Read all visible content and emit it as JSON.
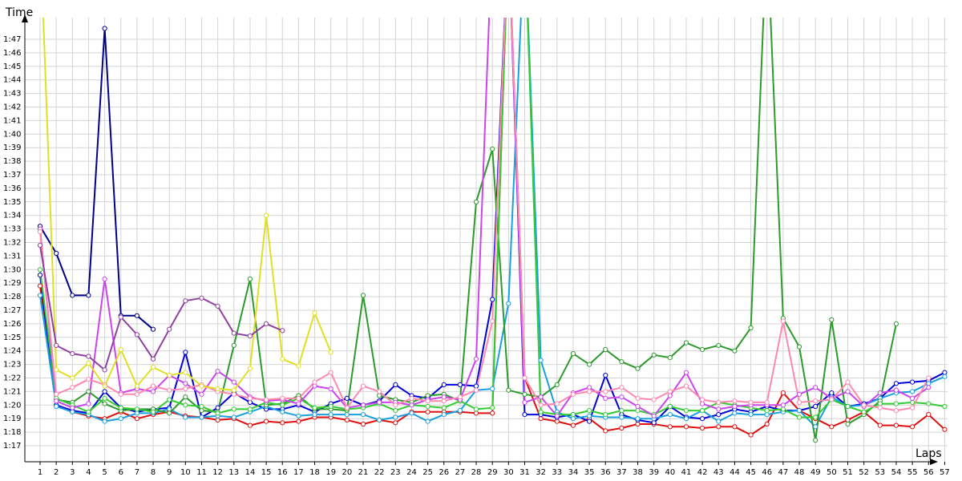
{
  "chart_data": {
    "type": "line",
    "xlabel": "Laps",
    "ylabel": "Time",
    "grid": true,
    "legend": "none",
    "xlim": [
      0.5,
      57.5
    ],
    "ylim": [
      75.8,
      109
    ],
    "x_ticks": [
      1,
      2,
      3,
      4,
      5,
      6,
      7,
      8,
      9,
      10,
      11,
      12,
      13,
      14,
      15,
      16,
      17,
      18,
      19,
      20,
      21,
      22,
      23,
      24,
      25,
      26,
      27,
      28,
      29,
      30,
      31,
      32,
      33,
      34,
      35,
      36,
      37,
      38,
      39,
      40,
      41,
      42,
      43,
      44,
      45,
      46,
      47,
      48,
      49,
      50,
      51,
      52,
      53,
      54,
      55,
      56,
      57
    ],
    "y_ticks": [
      {
        "v": 77,
        "label": "1:17"
      },
      {
        "v": 78,
        "label": "1:18"
      },
      {
        "v": 79,
        "label": "1:19"
      },
      {
        "v": 80,
        "label": "1:20"
      },
      {
        "v": 81,
        "label": "1:21"
      },
      {
        "v": 82,
        "label": "1:22"
      },
      {
        "v": 83,
        "label": "1:23"
      },
      {
        "v": 84,
        "label": "1:24"
      },
      {
        "v": 85,
        "label": "1:25"
      },
      {
        "v": 86,
        "label": "1:26"
      },
      {
        "v": 87,
        "label": "1:27"
      },
      {
        "v": 88,
        "label": "1:28"
      },
      {
        "v": 89,
        "label": "1:29"
      },
      {
        "v": 90,
        "label": "1:30"
      },
      {
        "v": 91,
        "label": "1:31"
      },
      {
        "v": 92,
        "label": "1:32"
      },
      {
        "v": 93,
        "label": "1:33"
      },
      {
        "v": 94,
        "label": "1:34"
      },
      {
        "v": 95,
        "label": "1:35"
      },
      {
        "v": 96,
        "label": "1:36"
      },
      {
        "v": 97,
        "label": "1:37"
      },
      {
        "v": 98,
        "label": "1:38"
      },
      {
        "v": 99,
        "label": "1:39"
      },
      {
        "v": 100,
        "label": "1:40"
      },
      {
        "v": 101,
        "label": "1:41"
      },
      {
        "v": 102,
        "label": "1:42"
      },
      {
        "v": 103,
        "label": "1:43"
      },
      {
        "v": 104,
        "label": "1:44"
      },
      {
        "v": 105,
        "label": "1:45"
      },
      {
        "v": 106,
        "label": "1:46"
      },
      {
        "v": 107,
        "label": "1:47"
      }
    ],
    "series": [
      {
        "color": "#e01010",
        "start": 1,
        "values": [
          88.8,
          80.0,
          79.5,
          79.2,
          79.0,
          79.5,
          79.0,
          79.3,
          79.5,
          79.2,
          79.1,
          78.9,
          79.0,
          78.5,
          78.8,
          78.7,
          78.8,
          79.1,
          79.1,
          78.9,
          78.6,
          78.9,
          78.7,
          79.5,
          79.5,
          79.5,
          79.5,
          79.4,
          79.4,
          115.0,
          82.0,
          79.0,
          78.8,
          78.5,
          79.0,
          78.1,
          78.3,
          78.6,
          78.6,
          78.4,
          78.4,
          78.3,
          78.4,
          78.4,
          77.8,
          78.6,
          80.9,
          79.6,
          79.0,
          78.4,
          78.9,
          79.5,
          78.5,
          78.5,
          78.4,
          79.3,
          78.2
        ]
      },
      {
        "color": "#0000d8",
        "start": 1,
        "values": [
          89.6,
          80.0,
          79.6,
          79.4,
          81.0,
          79.8,
          79.5,
          79.7,
          79.8,
          83.9,
          79.1,
          79.8,
          80.9,
          80.2,
          79.7,
          79.7,
          80.0,
          79.5,
          80.1,
          80.5,
          80.0,
          80.3,
          81.5,
          80.7,
          80.5,
          81.5,
          81.5,
          81.4,
          87.8,
          115.0,
          79.3,
          79.3,
          79.1,
          79.3,
          78.8,
          82.2,
          79.3,
          78.9,
          78.7,
          79.9,
          79.1,
          79.0,
          79.3,
          79.7,
          79.5,
          79.9,
          79.6,
          79.6,
          79.9,
          80.9,
          79.9,
          80.1,
          80.5,
          81.6,
          81.7,
          81.8,
          82.4
        ]
      },
      {
        "color": "#00008b",
        "start": 1,
        "values": [
          93.2,
          91.2,
          88.1,
          88.1,
          107.8,
          86.6,
          86.6,
          85.6
        ]
      },
      {
        "color": "#18a0e0",
        "start": 1,
        "values": [
          88.1,
          79.9,
          79.5,
          79.3,
          78.8,
          79.0,
          79.4,
          79.4,
          79.7,
          79.1,
          79.1,
          79.2,
          79.1,
          79.5,
          79.9,
          79.5,
          79.2,
          79.3,
          79.3,
          79.3,
          79.3,
          78.9,
          79.1,
          79.4,
          78.8,
          79.3,
          79.6,
          81.1,
          81.2,
          87.5,
          115.0,
          83.3,
          79.5,
          79.0,
          79.2,
          79.1,
          79.1,
          79.0,
          79.0,
          79.3,
          79.0,
          79.6,
          78.8,
          79.4,
          79.3,
          79.3,
          79.5,
          79.6,
          78.4,
          80.6,
          79.9,
          80.0,
          80.5,
          80.9,
          81.0,
          81.6,
          82.1
        ]
      },
      {
        "color": "#2e9a2e",
        "start": 1,
        "values": [
          93.0,
          80.4,
          80.2,
          81.0,
          80.1,
          79.6,
          79.7,
          79.7,
          79.4,
          80.6,
          79.6,
          79.5,
          84.4,
          89.3,
          80.0,
          80.1,
          80.7,
          79.7,
          79.7,
          79.6,
          88.1,
          80.7,
          80.4,
          80.2,
          80.7,
          80.8,
          80.3,
          95.0,
          98.9,
          81.1,
          80.8,
          80.6,
          81.5,
          83.8,
          83.0,
          84.1,
          83.2,
          82.7,
          83.7,
          83.5,
          84.6,
          84.1,
          84.4,
          84.0,
          85.7,
          115.0,
          86.4,
          84.3,
          77.4,
          86.3,
          78.6,
          79.3,
          80.3,
          86.0
        ]
      },
      {
        "color": "#33cc33",
        "start": 1,
        "values": [
          90.0,
          80.5,
          80.0,
          79.5,
          80.5,
          79.8,
          79.7,
          79.5,
          80.4,
          80.0,
          79.9,
          79.4,
          79.7,
          79.7,
          80.2,
          80.0,
          80.5,
          79.8,
          79.9,
          79.7,
          79.8,
          80.1,
          79.6,
          80.0,
          79.9,
          79.8,
          80.3,
          79.7,
          79.8,
          115.0,
          115.0,
          79.5,
          79.3,
          79.3,
          79.6,
          79.3,
          79.6,
          79.6,
          79.3,
          79.9,
          79.6,
          79.6,
          80.2,
          80.0,
          79.8,
          79.6,
          79.7,
          79.1,
          79.1,
          80.4,
          79.9,
          79.5,
          80.1,
          80.1,
          80.2,
          80.1,
          79.9
        ]
      },
      {
        "color": "#cc44ee",
        "start": 1,
        "values": [
          93.0,
          80.3,
          79.8,
          80.1,
          89.3,
          80.9,
          81.2,
          81.0,
          82.2,
          81.6,
          80.8,
          82.5,
          81.7,
          80.6,
          80.3,
          80.4,
          80.1,
          81.4,
          81.2,
          79.8,
          80.0,
          80.2,
          80.2,
          80.0,
          80.4,
          80.6,
          80.4,
          83.4,
          115.0,
          115.0,
          80.2,
          80.6,
          79.2,
          80.9,
          81.3,
          80.5,
          80.6,
          79.9,
          79.2,
          80.7,
          82.4,
          80.1,
          79.7,
          79.9,
          80.0,
          80.0,
          80.0,
          80.8,
          81.3,
          80.5,
          81.0,
          79.9,
          80.9,
          81.1,
          80.5,
          81.3
        ]
      },
      {
        "color": "#ff88b0",
        "start": 1,
        "values": [
          92.8,
          80.8,
          81.3,
          81.9,
          81.5,
          80.8,
          80.8,
          81.4,
          81.1,
          81.2,
          81.5,
          81.0,
          80.8,
          80.5,
          80.4,
          80.5,
          80.5,
          81.7,
          82.4,
          79.8,
          81.4,
          81.0,
          80.0,
          80.5,
          80.3,
          80.3,
          80.6,
          81.1,
          86.2,
          115.0,
          82.0,
          80.0,
          80.1,
          80.8,
          81.0,
          81.0,
          81.3,
          80.5,
          80.4,
          81.0,
          81.4,
          80.4,
          80.2,
          80.3,
          80.2,
          80.2,
          86.2,
          80.2,
          80.3,
          80.4,
          81.7,
          80.0,
          79.8,
          79.6,
          79.8,
          82.0
        ]
      },
      {
        "color": "#e0e020",
        "start": 1,
        "values": [
          115.0,
          82.6,
          82.0,
          83.1,
          81.4,
          84.1,
          81.4,
          82.8,
          82.2,
          82.4,
          81.4,
          81.2,
          81.1,
          82.7,
          94.0,
          83.4,
          82.9,
          86.8,
          83.9
        ]
      },
      {
        "color": "#9040a0",
        "start": 1,
        "values": [
          91.8,
          84.4,
          83.8,
          83.6,
          82.6,
          86.5,
          85.2,
          83.4,
          85.6,
          87.7,
          87.9,
          87.3,
          85.3,
          85.1,
          86.0,
          85.5
        ]
      }
    ]
  }
}
